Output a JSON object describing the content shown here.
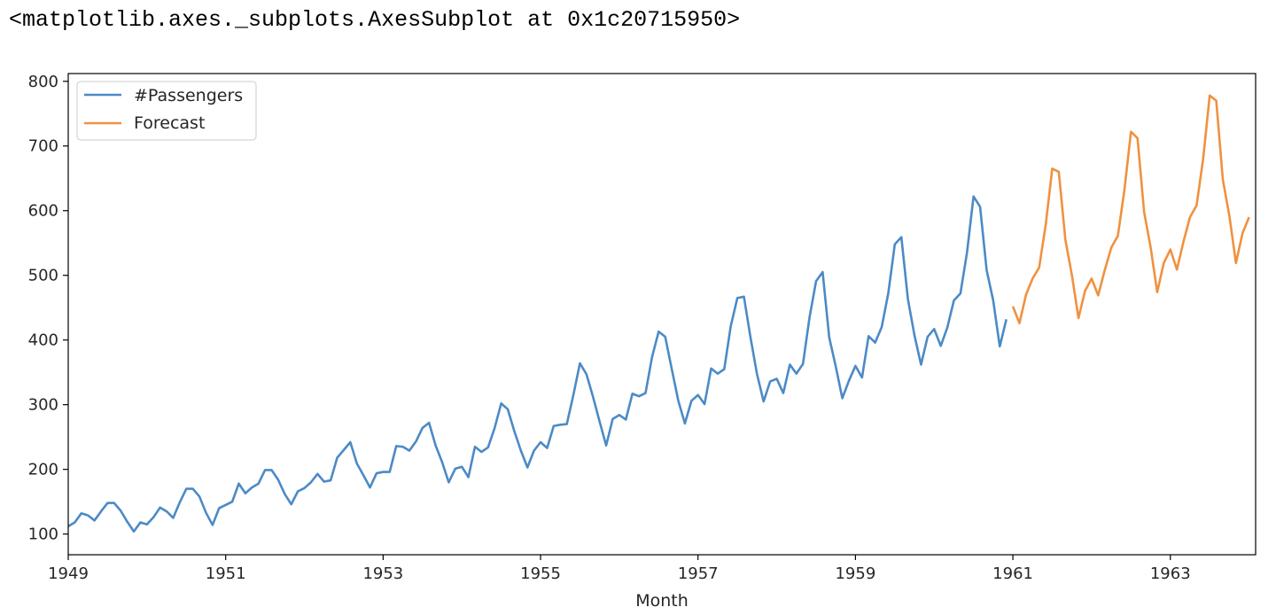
{
  "output_repr": "<matplotlib.axes._subplots.AxesSubplot at 0x1c20715950>",
  "chart_data": {
    "type": "line",
    "xlabel": "Month",
    "ylabel": "",
    "xlim": [
      1949.0,
      1964.0833
    ],
    "ylim": [
      68,
      812
    ],
    "x_ticks": [
      1949,
      1951,
      1953,
      1955,
      1957,
      1959,
      1961,
      1963
    ],
    "y_ticks": [
      100,
      200,
      300,
      400,
      500,
      600,
      700,
      800
    ],
    "grid": false,
    "legend_position": "upper left",
    "legend": [
      {
        "name": "#Passengers",
        "color": "#4c8ac6"
      },
      {
        "name": "Forecast",
        "color": "#f0913f"
      }
    ],
    "series": [
      {
        "name": "#Passengers",
        "color": "#4c8ac6",
        "x_start": 1949.0,
        "step": 0.0833333,
        "values": [
          112,
          118,
          132,
          129,
          121,
          135,
          148,
          148,
          136,
          119,
          104,
          118,
          115,
          126,
          141,
          135,
          125,
          149,
          170,
          170,
          158,
          133,
          114,
          140,
          145,
          150,
          178,
          163,
          172,
          178,
          199,
          199,
          184,
          162,
          146,
          166,
          171,
          180,
          193,
          181,
          183,
          218,
          230,
          242,
          209,
          191,
          172,
          194,
          196,
          196,
          236,
          235,
          229,
          243,
          264,
          272,
          237,
          211,
          180,
          201,
          204,
          188,
          235,
          227,
          234,
          264,
          302,
          293,
          259,
          229,
          203,
          229,
          242,
          233,
          267,
          269,
          270,
          315,
          364,
          347,
          312,
          274,
          237,
          278,
          284,
          277,
          317,
          313,
          318,
          374,
          413,
          405,
          355,
          306,
          271,
          306,
          315,
          301,
          356,
          348,
          355,
          422,
          465,
          467,
          404,
          347,
          305,
          336,
          340,
          318,
          362,
          348,
          363,
          435,
          491,
          505,
          404,
          359,
          310,
          337,
          360,
          342,
          406,
          396,
          420,
          472,
          548,
          559,
          463,
          407,
          362,
          405,
          417,
          391,
          419,
          461,
          472,
          535,
          622,
          606,
          508,
          461,
          390,
          432
        ]
      },
      {
        "name": "Forecast",
        "color": "#f0913f",
        "x_start": 1961.0,
        "step": 0.0833333,
        "values": [
          452,
          426,
          470,
          495,
          512,
          578,
          665,
          660,
          555,
          500,
          434,
          476,
          495,
          469,
          508,
          543,
          561,
          632,
          722,
          712,
          598,
          543,
          474,
          519,
          540,
          509,
          552,
          590,
          608,
          680,
          778,
          770,
          648,
          592,
          519,
          565,
          590
        ]
      }
    ]
  }
}
